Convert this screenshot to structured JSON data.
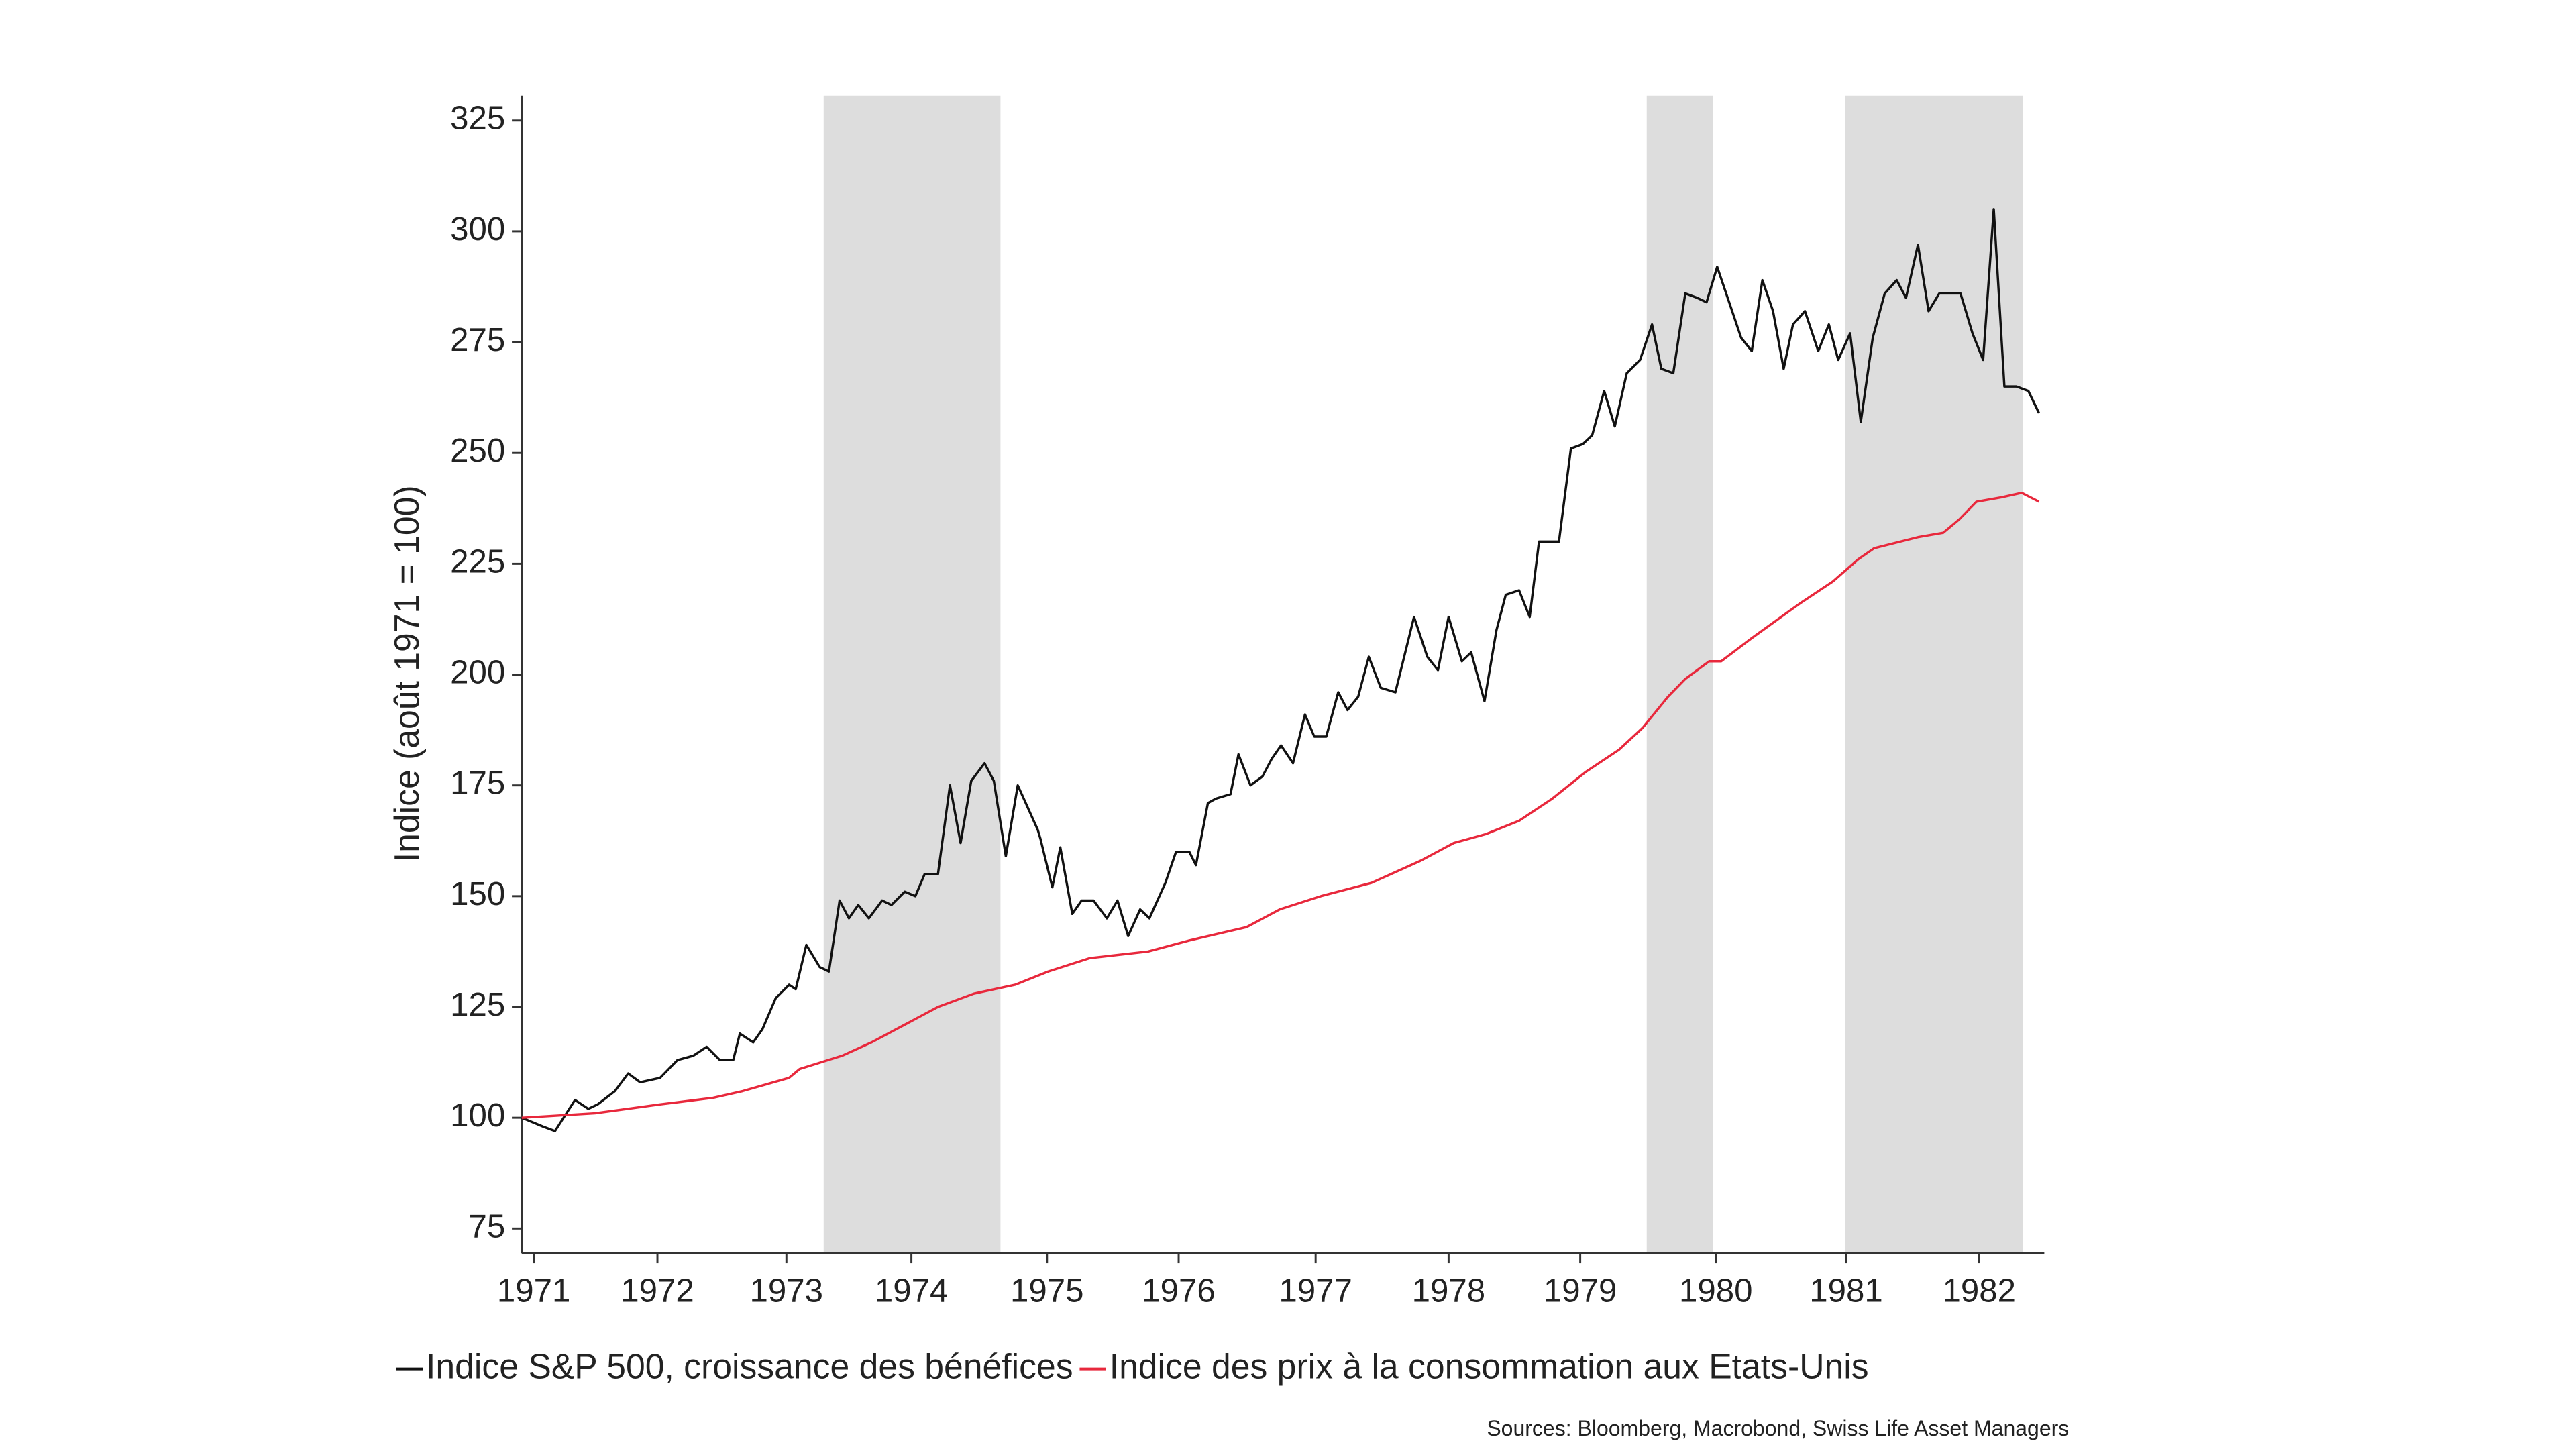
{
  "chart_data": {
    "type": "line",
    "y_label": "Indice (août 1971 = 100)",
    "source": "Sources: Bloomberg, Macrobond, Swiss Life Asset Managers",
    "xlim": [
      1971.58,
      1983.03
    ],
    "ylim": [
      69.4,
      330.6
    ],
    "xticks": [
      {
        "value": 1971.67,
        "label": "1971"
      },
      {
        "value": 1972.6,
        "label": "1972"
      },
      {
        "value": 1973.57,
        "label": "1973"
      },
      {
        "value": 1974.51,
        "label": "1974"
      },
      {
        "value": 1975.53,
        "label": "1975"
      },
      {
        "value": 1976.52,
        "label": "1976"
      },
      {
        "value": 1977.55,
        "label": "1977"
      },
      {
        "value": 1978.55,
        "label": "1978"
      },
      {
        "value": 1979.54,
        "label": "1979"
      },
      {
        "value": 1980.56,
        "label": "1980"
      },
      {
        "value": 1981.54,
        "label": "1981"
      },
      {
        "value": 1982.54,
        "label": "1982"
      }
    ],
    "yticks": [
      75,
      100,
      125,
      150,
      175,
      200,
      225,
      250,
      275,
      300,
      325
    ],
    "shaded_periods": [
      [
        1973.85,
        1975.18
      ],
      [
        1980.04,
        1980.54
      ],
      [
        1981.53,
        1982.87
      ]
    ],
    "shade_color": "#dddddd",
    "series": [
      {
        "name": "Indice S&P 500, croissance des bénéfices",
        "color": "#111111",
        "x": [
          1971.58,
          1971.74,
          1971.83,
          1971.98,
          1972.08,
          1972.15,
          1972.28,
          1972.38,
          1972.47,
          1972.62,
          1972.75,
          1972.87,
          1972.97,
          1973.07,
          1973.17,
          1973.22,
          1973.32,
          1973.39,
          1973.49,
          1973.59,
          1973.64,
          1973.72,
          1973.82,
          1973.89,
          1973.97,
          1974.04,
          1974.11,
          1974.19,
          1974.29,
          1974.36,
          1974.46,
          1974.54,
          1974.61,
          1974.71,
          1974.8,
          1974.88,
          1974.96,
          1975.06,
          1975.13,
          1975.22,
          1975.31,
          1975.46,
          1975.48,
          1975.57,
          1975.63,
          1975.72,
          1975.79,
          1975.88,
          1975.98,
          1976.06,
          1976.14,
          1976.23,
          1976.3,
          1976.42,
          1976.5,
          1976.6,
          1976.65,
          1976.74,
          1976.8,
          1976.91,
          1976.97,
          1977.06,
          1977.15,
          1977.22,
          1977.29,
          1977.38,
          1977.47,
          1977.54,
          1977.63,
          1977.72,
          1977.79,
          1977.87,
          1977.95,
          1978.04,
          1978.15,
          1978.29,
          1978.39,
          1978.47,
          1978.55,
          1978.65,
          1978.72,
          1978.82,
          1978.91,
          1978.98,
          1979.08,
          1979.16,
          1979.23,
          1979.38,
          1979.47,
          1979.56,
          1979.63,
          1979.72,
          1979.8,
          1979.89,
          1979.99,
          1980.08,
          1980.15,
          1980.24,
          1980.33,
          1980.42,
          1980.49,
          1980.57,
          1980.66,
          1980.75,
          1980.83,
          1980.91,
          1980.99,
          1981.07,
          1981.14,
          1981.23,
          1981.33,
          1981.41,
          1981.48,
          1981.57,
          1981.65,
          1981.74,
          1981.83,
          1981.92,
          1981.99,
          1982.08,
          1982.16,
          1982.24,
          1982.33,
          1982.4,
          1982.49,
          1982.57,
          1982.65,
          1982.73,
          1982.82,
          1982.91,
          1982.99
        ],
        "values": [
          100,
          98,
          97,
          104,
          102,
          103,
          106,
          110,
          108,
          109,
          113,
          114,
          116,
          113,
          113,
          119,
          117,
          120,
          127,
          130,
          129,
          139,
          134,
          133,
          149,
          145,
          148,
          145,
          149,
          148,
          151,
          150,
          155,
          155,
          175,
          162,
          176,
          180,
          176,
          159,
          175,
          165,
          163,
          152,
          161,
          146,
          149,
          149,
          145,
          149,
          141,
          147,
          145,
          153,
          160,
          160,
          157,
          171,
          172,
          173,
          182,
          175,
          177,
          181,
          184,
          180,
          191,
          186,
          186,
          196,
          192,
          195,
          204,
          197,
          196,
          213,
          204,
          201,
          213,
          203,
          205,
          194,
          210,
          218,
          219,
          213,
          230,
          230,
          251,
          252,
          254,
          264,
          256,
          268,
          271,
          279,
          269,
          268,
          286,
          285,
          284,
          292,
          284,
          276,
          273,
          289,
          282,
          269,
          279,
          282,
          273,
          279,
          271,
          277,
          257,
          276,
          286,
          289,
          285,
          297,
          282,
          286,
          286,
          286,
          277,
          271,
          305,
          265,
          265,
          264,
          259
        ]
      },
      {
        "name": "Indice des prix à la consommation aux Etats-Unis",
        "color": "#e8283c",
        "x": [
          1971.58,
          1972.13,
          1972.62,
          1973.02,
          1973.24,
          1973.59,
          1973.67,
          1973.99,
          1974.21,
          1974.46,
          1974.71,
          1974.98,
          1975.29,
          1975.54,
          1975.85,
          1976.29,
          1976.6,
          1977.03,
          1977.28,
          1977.59,
          1977.97,
          1978.34,
          1978.59,
          1978.83,
          1979.08,
          1979.33,
          1979.58,
          1979.83,
          1980.01,
          1980.2,
          1980.33,
          1980.51,
          1980.6,
          1980.82,
          1981.19,
          1981.44,
          1981.63,
          1981.75,
          1982.08,
          1982.27,
          1982.39,
          1982.52,
          1982.71,
          1982.86,
          1982.99
        ],
        "values": [
          100,
          101,
          103,
          104.5,
          106,
          109,
          111,
          114,
          117,
          121,
          125,
          128,
          130,
          133,
          136,
          137.5,
          140,
          143,
          147,
          150,
          153,
          158,
          162,
          164,
          167,
          172,
          178,
          183,
          188,
          195,
          199,
          203,
          203,
          208,
          216,
          221,
          226,
          228.5,
          231,
          232,
          235,
          239,
          240,
          241,
          239
        ]
      }
    ]
  }
}
